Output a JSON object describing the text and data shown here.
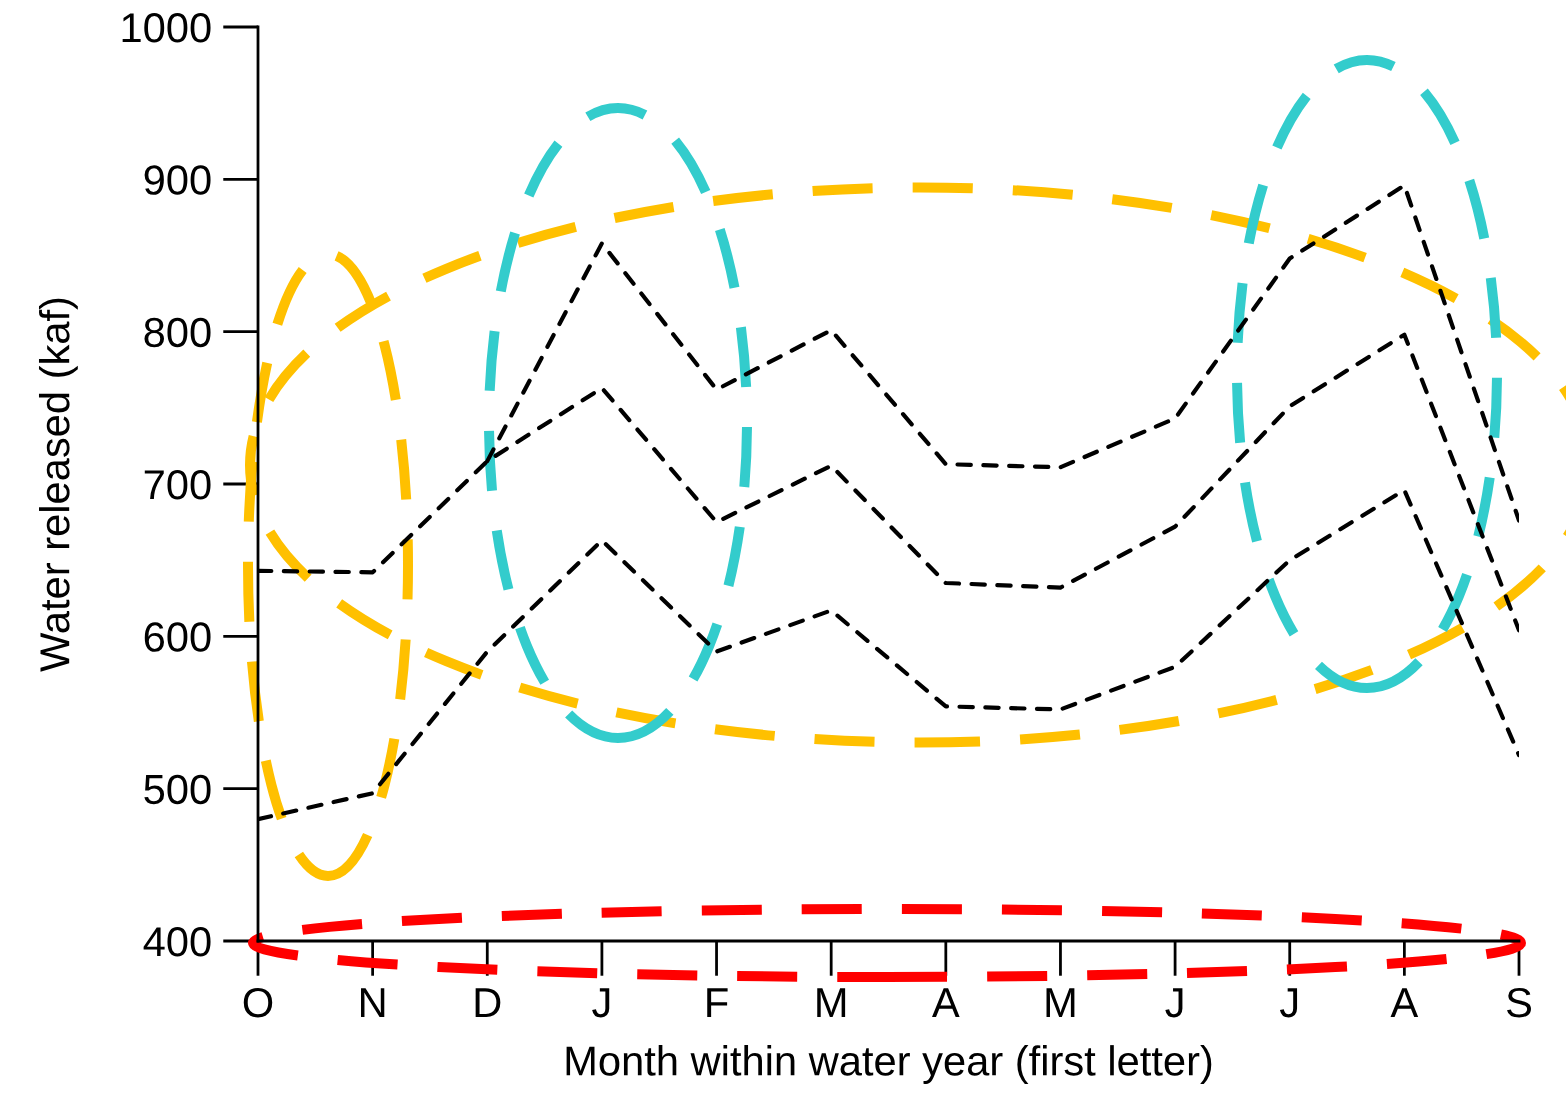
{
  "chart_data": {
    "type": "line",
    "xlabel": "Month within water year (first letter)",
    "ylabel": "Water released (kaf)",
    "categories": [
      "O",
      "N",
      "D",
      "J",
      "F",
      "M",
      "A",
      "M",
      "J",
      "J",
      "A",
      "S"
    ],
    "ylim": [
      400,
      1000
    ],
    "yticks": [
      400,
      500,
      600,
      700,
      800,
      900,
      1000
    ],
    "grid": false,
    "marker": "none",
    "line_style": "dashed",
    "series": [
      {
        "color": "#000000",
        "values": [
          480,
          497,
          590,
          663,
          590,
          617,
          554,
          552,
          580,
          650,
          696,
          522
        ]
      },
      {
        "color": "#000000",
        "values": [
          643,
          642,
          715,
          763,
          675,
          712,
          635,
          632,
          672,
          751,
          798,
          604
        ]
      },
      {
        "color": "#000000",
        "values": [
          null,
          null,
          715,
          858,
          762,
          801,
          713,
          711,
          743,
          848,
          896,
          676
        ]
      }
    ]
  }
}
